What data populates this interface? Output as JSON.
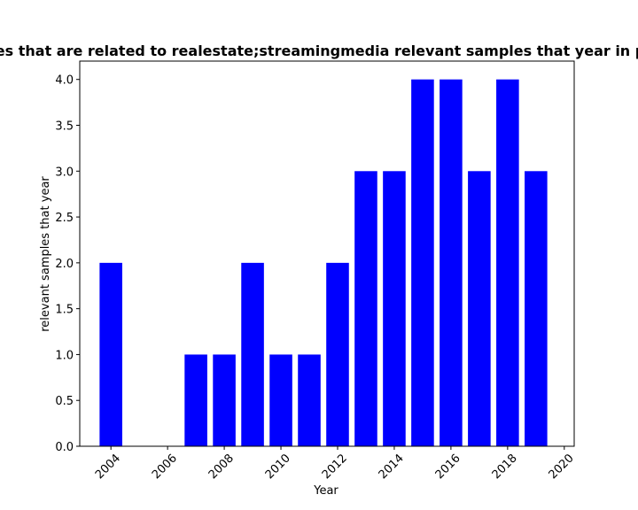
{
  "chart_data": {
    "type": "bar",
    "title": "Distribution of samples that are related to realestate;streamingmedia relevant samples that year in privacy policy dataset",
    "xlabel": "Year",
    "ylabel": "relevant samples that year",
    "x": [
      2004,
      2005,
      2006,
      2007,
      2008,
      2009,
      2010,
      2011,
      2012,
      2013,
      2014,
      2015,
      2016,
      2017,
      2018,
      2019
    ],
    "values": [
      2,
      0,
      0,
      1,
      1,
      2,
      1,
      1,
      2,
      3,
      3,
      4,
      4,
      3,
      4,
      3
    ],
    "bar_color": "#0000ff",
    "xlim": [
      2002.9,
      2020.35
    ],
    "ylim": [
      0,
      4.2
    ],
    "xticks": [
      "2004",
      "2006",
      "2008",
      "2010",
      "2012",
      "2014",
      "2016",
      "2018",
      "2020"
    ],
    "yticks": [
      "0.0",
      "0.5",
      "1.0",
      "1.5",
      "2.0",
      "2.5",
      "3.0",
      "3.5",
      "4.0"
    ],
    "grid": false
  }
}
